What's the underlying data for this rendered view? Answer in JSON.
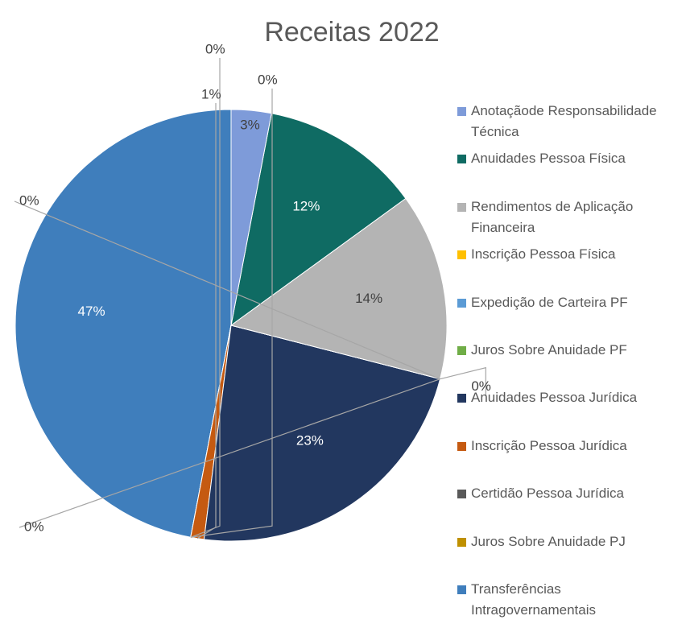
{
  "chart_data": {
    "type": "pie",
    "title": "Receitas 2022",
    "categories": [
      "Anotaçãode Responsabilidade Técnica",
      "Anuidades Pessoa Física",
      "Rendimentos de Aplicação Financeira",
      "Inscrição Pessoa Física",
      "Expedição de Carteira PF",
      "Juros Sobre Anuidade PF",
      "Anuidades Pessoa Jurídica",
      "Inscrição Pessoa Jurídica",
      "Certidão Pessoa Jurídica",
      "Juros Sobre Anuidade PJ",
      "Transferências Intragovernamentais"
    ],
    "values": [
      3,
      12,
      14,
      0,
      0,
      0,
      23,
      1,
      0,
      0,
      47
    ],
    "value_labels": [
      "3%",
      "12%",
      "14%",
      "0%",
      "0%",
      "0%",
      "23%",
      "1%",
      "0%",
      "0%",
      "47%"
    ],
    "colors": [
      "#7e9bd9",
      "#0f6b63",
      "#b4b4b4",
      "#ffc000",
      "#5b9bd5",
      "#70ad47",
      "#22375f",
      "#c55a11",
      "#595959",
      "#bf9000",
      "#3f7ebc"
    ],
    "legend": "right"
  }
}
